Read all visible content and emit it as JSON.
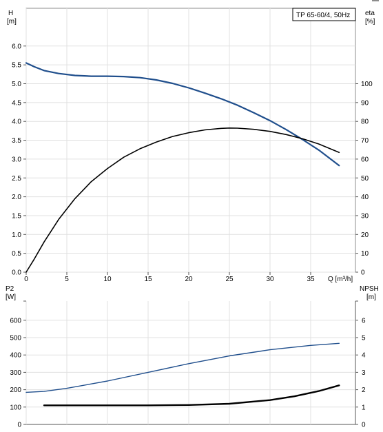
{
  "chart_data": [
    {
      "type": "line",
      "title": "TP 65-60/4, 50Hz",
      "xlabel": "Q [m³/h]",
      "ylabel_left": [
        "H",
        "[m]"
      ],
      "ylabel_right": [
        "eta",
        "[%]"
      ],
      "xlim": [
        0,
        40
      ],
      "ylim_left": [
        0,
        6.5
      ],
      "ylim_right": [
        0,
        120
      ],
      "x_ticks": [
        "0",
        "5",
        "10",
        "15",
        "20",
        "25",
        "30",
        "35"
      ],
      "y_ticks_left": [
        "0.0",
        "0.5",
        "1.0",
        "1.5",
        "2.0",
        "2.5",
        "3.0",
        "3.5",
        "4.0",
        "4.5",
        "5.0",
        "5.5",
        "6.0"
      ],
      "y_ticks_right": [
        "0",
        "10",
        "20",
        "30",
        "40",
        "50",
        "60",
        "70",
        "80",
        "90",
        "100"
      ],
      "grid": true,
      "series": [
        {
          "axis": "left",
          "color": "#1f4e8c",
          "points": [
            [
              0,
              5.55
            ],
            [
              1,
              5.45
            ],
            [
              2.2,
              5.35
            ],
            [
              4,
              5.27
            ],
            [
              6,
              5.22
            ],
            [
              8,
              5.2
            ],
            [
              10,
              5.2
            ],
            [
              12,
              5.19
            ],
            [
              14,
              5.16
            ],
            [
              16,
              5.1
            ],
            [
              18,
              5.01
            ],
            [
              20,
              4.89
            ],
            [
              22,
              4.75
            ],
            [
              24,
              4.6
            ],
            [
              26,
              4.43
            ],
            [
              28,
              4.23
            ],
            [
              30,
              4.02
            ],
            [
              32,
              3.78
            ],
            [
              34,
              3.52
            ],
            [
              36,
              3.24
            ],
            [
              38.5,
              2.83
            ]
          ]
        },
        {
          "axis": "right",
          "color": "#000000",
          "points": [
            [
              0,
              0
            ],
            [
              1,
              7
            ],
            [
              2.2,
              16
            ],
            [
              4,
              28
            ],
            [
              6,
              39
            ],
            [
              8,
              48
            ],
            [
              10,
              55
            ],
            [
              12,
              61
            ],
            [
              14,
              65.5
            ],
            [
              16,
              69
            ],
            [
              18,
              72
            ],
            [
              20,
              74
            ],
            [
              22,
              75.5
            ],
            [
              24,
              76.3
            ],
            [
              25,
              76.5
            ],
            [
              26,
              76.4
            ],
            [
              28,
              75.8
            ],
            [
              30,
              74.7
            ],
            [
              32,
              73
            ],
            [
              34,
              70.8
            ],
            [
              36,
              68
            ],
            [
              38.5,
              63.5
            ]
          ]
        }
      ]
    },
    {
      "type": "line",
      "xlim": [
        0,
        40
      ],
      "ylim_left": [
        0,
        700
      ],
      "ylim_right": [
        0,
        7
      ],
      "ylabel_left": [
        "P2",
        "[W]"
      ],
      "ylabel_right": [
        "NPSH",
        "[m]"
      ],
      "y_ticks_left": [
        "0",
        "100",
        "200",
        "300",
        "400",
        "500",
        "600"
      ],
      "y_ticks_right": [
        "0",
        "1",
        "2",
        "3",
        "4",
        "5",
        "6"
      ],
      "grid": true,
      "series": [
        {
          "axis": "left",
          "color": "#1f4e8c",
          "points": [
            [
              0,
              185
            ],
            [
              2.2,
              190
            ],
            [
              5,
              208
            ],
            [
              10,
              250
            ],
            [
              15,
              300
            ],
            [
              20,
              350
            ],
            [
              25,
              395
            ],
            [
              30,
              430
            ],
            [
              35,
              455
            ],
            [
              38.5,
              467
            ]
          ]
        },
        {
          "axis": "right",
          "color": "#000000",
          "points": [
            [
              2.2,
              1.1
            ],
            [
              5,
              1.1
            ],
            [
              10,
              1.1
            ],
            [
              15,
              1.1
            ],
            [
              20,
              1.12
            ],
            [
              25,
              1.19
            ],
            [
              30,
              1.4
            ],
            [
              33,
              1.62
            ],
            [
              36,
              1.92
            ],
            [
              38.5,
              2.25
            ]
          ]
        }
      ]
    }
  ]
}
